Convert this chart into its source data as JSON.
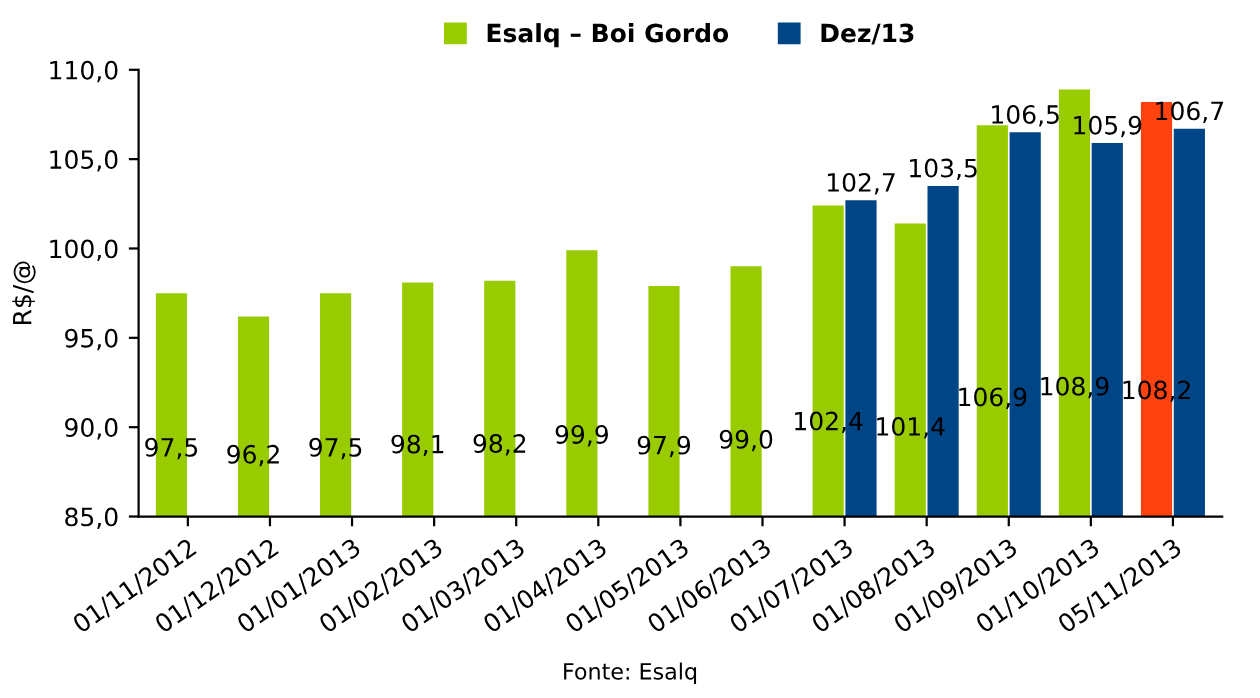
{
  "chart_data": {
    "type": "bar",
    "ylabel": "R$/@",
    "categories": [
      "01/11/2012",
      "01/12/2012",
      "01/01/2013",
      "01/02/2013",
      "01/03/2013",
      "01/04/2013",
      "01/05/2013",
      "01/06/2013",
      "01/07/2013",
      "01/08/2013",
      "01/09/2013",
      "01/10/2013",
      "05/11/2013"
    ],
    "series": [
      {
        "name": "Esalq – Boi Gordo",
        "color": "#99cc00",
        "colors": [
          "#99cc00",
          "#99cc00",
          "#99cc00",
          "#99cc00",
          "#99cc00",
          "#99cc00",
          "#99cc00",
          "#99cc00",
          "#99cc00",
          "#99cc00",
          "#99cc00",
          "#99cc00",
          "#ff420e"
        ],
        "values": [
          97.5,
          96.2,
          97.5,
          98.1,
          98.2,
          99.9,
          97.9,
          99.0,
          102.4,
          101.4,
          106.9,
          108.9,
          108.2
        ],
        "value_labels": [
          "97,5",
          "96,2",
          "97,5",
          "98,1",
          "98,2",
          "99,9",
          "97,9",
          "99,0",
          "102,4",
          "101,4",
          "106,9",
          "108,9",
          "108,2"
        ]
      },
      {
        "name": "Dez/13",
        "color": "#004586",
        "values": [
          null,
          null,
          null,
          null,
          null,
          null,
          null,
          null,
          102.7,
          103.5,
          106.5,
          105.9,
          106.7
        ],
        "value_labels": [
          null,
          null,
          null,
          null,
          null,
          null,
          null,
          null,
          "102,7",
          "103,5",
          "106,5",
          "105,9",
          "106,7"
        ]
      }
    ],
    "ylim": [
      85,
      110
    ],
    "yticks": [
      {
        "value": 85,
        "label": "85,0"
      },
      {
        "value": 90,
        "label": "90,0"
      },
      {
        "value": 95,
        "label": "95,0"
      },
      {
        "value": 100,
        "label": "100,0"
      },
      {
        "value": 105,
        "label": "105,0"
      },
      {
        "value": 110,
        "label": "110,0"
      }
    ],
    "grid": false,
    "legend": "top",
    "annotations": [
      "Fonte: Esalq"
    ]
  }
}
